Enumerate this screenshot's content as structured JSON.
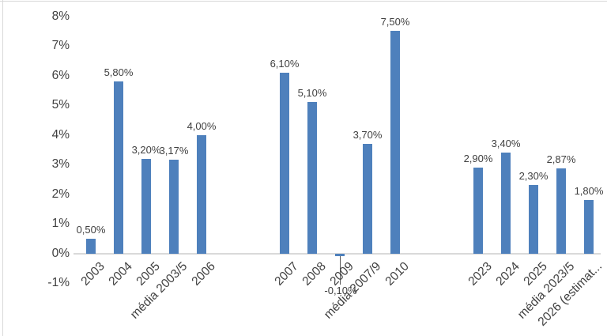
{
  "chart_data": {
    "type": "bar",
    "title": "",
    "xlabel": "",
    "ylabel": "",
    "ylim": [
      -1,
      8
    ],
    "grid": false,
    "legend": false,
    "decimal_style": "comma",
    "bar_color": "#4E80BC",
    "axis_line_color": "#D9D9D9",
    "label_color": "#404040",
    "leader_line_color": "#595959",
    "y_tick_values": [
      8,
      7,
      6,
      5,
      4,
      3,
      2,
      1,
      0,
      -1
    ],
    "y_tick_labels": [
      "8%",
      "7%",
      "6%",
      "5%",
      "4%",
      "3%",
      "2%",
      "1%",
      "0%",
      "-1%"
    ],
    "groups": [
      {
        "bars": [
          {
            "category": "2003",
            "value": 0.5,
            "label": "0,50%"
          },
          {
            "category": "2004",
            "value": 5.8,
            "label": "5,80%"
          },
          {
            "category": "2005",
            "value": 3.2,
            "label": "3,20%"
          },
          {
            "category": "média 2003/5",
            "value": 3.17,
            "label": "3,17%"
          },
          {
            "category": "2006",
            "value": 4.0,
            "label": "4,00%"
          }
        ]
      },
      {
        "bars": [
          {
            "category": "2007",
            "value": 6.1,
            "label": "6,10%"
          },
          {
            "category": "2008",
            "value": 5.1,
            "label": "5,10%"
          },
          {
            "category": "2009",
            "value": -0.1,
            "label": "-0,10%"
          },
          {
            "category": "média 2007/9",
            "value": 3.7,
            "label": "3,70%"
          },
          {
            "category": "2010",
            "value": 7.5,
            "label": "7,50%"
          }
        ]
      },
      {
        "bars": [
          {
            "category": "2023",
            "value": 2.9,
            "label": "2,90%"
          },
          {
            "category": "2024",
            "value": 3.4,
            "label": "3,40%"
          },
          {
            "category": "2025",
            "value": 2.3,
            "label": "2,30%"
          },
          {
            "category": "média 2023/5",
            "value": 2.87,
            "label": "2,87%"
          },
          {
            "category": "2026 (estimat...",
            "value": 1.8,
            "label": "1,80%"
          }
        ]
      }
    ]
  }
}
